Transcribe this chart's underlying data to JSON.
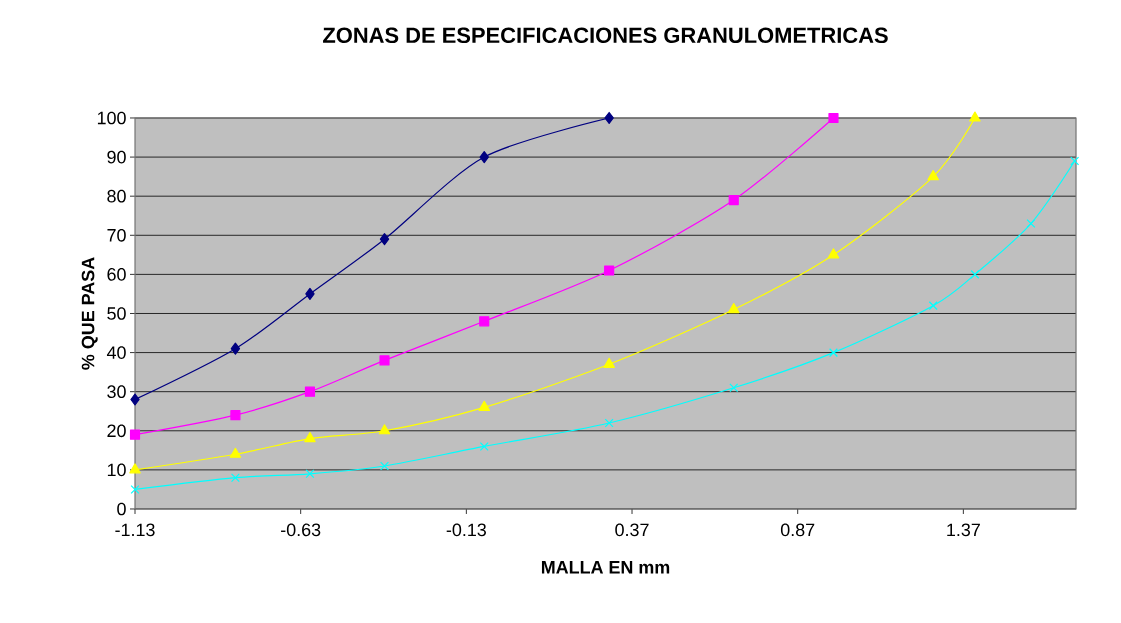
{
  "chart_data": {
    "type": "line",
    "title": "ZONAS DE ESPECIFICACIONES GRANULOMETRICAS",
    "xlabel": "MALLA EN mm",
    "ylabel": "% QUE PASA",
    "xlim": [
      -1.13,
      1.71
    ],
    "xticks": [
      -1.13,
      -0.63,
      -0.13,
      0.37,
      0.87,
      1.37
    ],
    "ylim": [
      0,
      100
    ],
    "yticks": [
      0,
      10,
      20,
      30,
      40,
      50,
      60,
      70,
      80,
      90,
      100
    ],
    "grid": "y",
    "series": [
      {
        "color": "#000080",
        "marker": "diamond",
        "x": [
          -1.13,
          -0.827,
          -0.602,
          -0.377,
          -0.076,
          0.301
        ],
        "values": [
          28,
          41,
          55,
          69,
          90,
          100
        ]
      },
      {
        "color": "#ff00ff",
        "marker": "square",
        "x": [
          -1.13,
          -0.827,
          -0.602,
          -0.377,
          -0.076,
          0.301,
          0.677,
          0.978
        ],
        "values": [
          19,
          24,
          30,
          38,
          48,
          61,
          79,
          100
        ]
      },
      {
        "color": "#ffff00",
        "marker": "triangle",
        "x": [
          -1.13,
          -0.827,
          -0.602,
          -0.377,
          -0.076,
          0.301,
          0.677,
          0.978,
          1.279,
          1.405
        ],
        "values": [
          10,
          14,
          18,
          20,
          26,
          37,
          51,
          65,
          85,
          100
        ]
      },
      {
        "color": "#00ffff",
        "marker": "cross",
        "x": [
          -1.13,
          -0.827,
          -0.602,
          -0.377,
          -0.076,
          0.301,
          0.677,
          0.978,
          1.279,
          1.405,
          1.574,
          1.706
        ],
        "values": [
          5,
          8,
          9,
          11,
          16,
          22,
          31,
          40,
          52,
          60,
          73,
          89
        ]
      }
    ]
  }
}
